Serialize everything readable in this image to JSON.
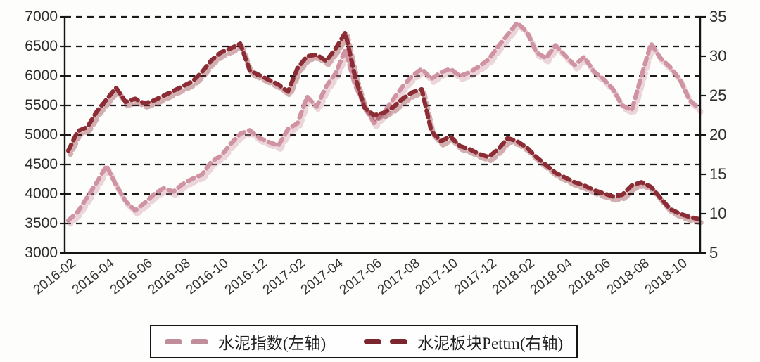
{
  "chart_data": {
    "type": "line",
    "title": "",
    "style": "thick dashed line segments, dual y-axis",
    "grid": "horizontal dashed black lines",
    "legend_position": "bottom-center boxed",
    "x_axis": {
      "tick_labels": [
        "2016-02",
        "2016-04",
        "2016-06",
        "2016-08",
        "2016-10",
        "2016-12",
        "2017-02",
        "2017-04",
        "2017-06",
        "2017-08",
        "2017-10",
        "2017-12",
        "2018-02",
        "2018-04",
        "2018-06",
        "2018-08",
        "2018-10"
      ],
      "label_rotation_deg": -38,
      "x_unit": "months since 2016-02"
    },
    "left_y_axis": {
      "min": 3000,
      "max": 7000,
      "step": 500,
      "ticks": [
        7000,
        6500,
        6000,
        5500,
        5000,
        4500,
        4000,
        3500,
        3000
      ]
    },
    "right_y_axis": {
      "min": 5,
      "max": 35,
      "step": 5,
      "ticks": [
        35,
        30,
        25,
        20,
        15,
        10,
        5
      ]
    },
    "series": [
      {
        "name": "水泥指数(左轴)",
        "axis": "left",
        "color": "#cf93a2",
        "x": [
          0,
          0.5,
          1,
          1.5,
          2,
          2.5,
          3,
          3.5,
          4,
          4.5,
          5,
          5.5,
          6,
          6.5,
          7,
          7.5,
          8,
          8.5,
          9,
          9.5,
          10,
          10.5,
          11,
          11.5,
          12,
          12.5,
          13,
          13.5,
          14,
          14.5,
          15,
          15.5,
          16,
          16.5,
          17,
          17.5,
          18,
          18.5,
          19,
          19.5,
          20,
          20.5,
          21,
          21.5,
          22,
          22.5,
          23,
          23.5,
          24,
          24.5,
          25,
          25.5,
          26,
          26.5,
          27,
          27.5,
          28,
          28.5,
          29,
          29.5,
          30,
          30.5,
          31,
          31.5,
          32,
          32.5,
          33
        ],
        "values": [
          3550,
          3700,
          3950,
          4200,
          4480,
          4150,
          3880,
          3720,
          3850,
          4000,
          4100,
          4040,
          4170,
          4260,
          4330,
          4550,
          4650,
          4850,
          5020,
          5080,
          4950,
          4880,
          4820,
          5100,
          5200,
          5650,
          5480,
          5820,
          6050,
          6440,
          5850,
          5500,
          5200,
          5380,
          5600,
          5820,
          6000,
          6120,
          5950,
          6060,
          6120,
          6000,
          6060,
          6160,
          6280,
          6500,
          6700,
          6900,
          6750,
          6400,
          6300,
          6520,
          6350,
          6180,
          6320,
          6080,
          5950,
          5780,
          5500,
          5420,
          6000,
          6550,
          6300,
          6150,
          5950,
          5600,
          5450
        ]
      },
      {
        "name": "水泥板块Pettm(右轴)",
        "axis": "right",
        "color": "#8c2c34",
        "x": [
          0,
          0.5,
          1,
          1.5,
          2,
          2.5,
          3,
          3.5,
          4,
          4.5,
          5,
          5.5,
          6,
          6.5,
          7,
          7.5,
          8,
          8.5,
          9,
          9.5,
          10,
          10.5,
          11,
          11.5,
          12,
          12.5,
          13,
          13.5,
          14,
          14.5,
          15,
          15.5,
          16,
          16.5,
          17,
          17.5,
          18,
          18.5,
          19,
          19.5,
          20,
          20.5,
          21,
          21.5,
          22,
          22.5,
          23,
          23.5,
          24,
          24.5,
          25,
          25.5,
          26,
          26.5,
          27,
          27.5,
          28,
          28.5,
          29,
          29.5,
          30,
          30.5,
          31,
          31.5,
          32,
          32.5,
          33
        ],
        "values": [
          18.0,
          20.5,
          21.0,
          23.0,
          24.5,
          26.0,
          24.2,
          24.6,
          24.0,
          24.4,
          25.0,
          25.6,
          26.2,
          26.8,
          28.0,
          29.5,
          30.5,
          31.0,
          31.6,
          28.2,
          27.6,
          27.0,
          26.4,
          25.5,
          28.5,
          30.0,
          30.2,
          29.4,
          31.0,
          33.0,
          27.5,
          23.5,
          22.5,
          22.8,
          23.5,
          24.6,
          25.4,
          25.8,
          20.5,
          19.2,
          19.8,
          18.6,
          18.2,
          17.6,
          17.2,
          18.2,
          19.6,
          19.2,
          18.4,
          17.2,
          16.2,
          15.2,
          14.6,
          14.0,
          13.6,
          13.0,
          12.6,
          12.2,
          12.4,
          13.6,
          14.0,
          13.4,
          12.0,
          10.6,
          10.0,
          9.6,
          9.3
        ]
      }
    ]
  },
  "legend": {
    "items": [
      {
        "label": "水泥指数(左轴)",
        "color": "#c08e9b"
      },
      {
        "label": "水泥板块Pettm(右轴)",
        "color": "#7b262e"
      }
    ]
  },
  "colors": {
    "background": "#fdfdfc",
    "axis": "#151515",
    "gridline": "#1b1b1b",
    "tick_text": "#2d2d2d"
  }
}
